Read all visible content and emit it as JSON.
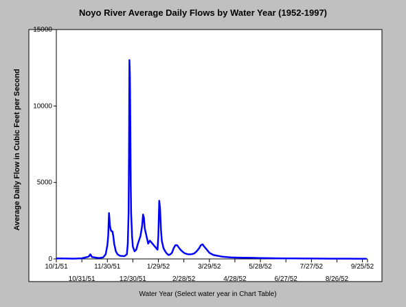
{
  "chart_data": {
    "type": "line",
    "title": "Noyo River Average Daily Flows by Water Year (1952-1997)",
    "xlabel": "Water Year (Select water year in Chart Table)",
    "ylabel": "Average Daily Flow in Cubic Feet per Second",
    "ylim": [
      0,
      15000
    ],
    "yticks": [
      0,
      5000,
      10000,
      15000
    ],
    "x_tick_labels": [
      "10/1/51",
      "10/31/51",
      "11/30/51",
      "12/30/51",
      "1/29/52",
      "2/28/52",
      "3/29/52",
      "4/28/52",
      "5/28/52",
      "6/27/52",
      "7/27/52",
      "8/26/52",
      "9/25/52"
    ],
    "x_tick_days": [
      0,
      30,
      60,
      90,
      120,
      150,
      180,
      210,
      240,
      270,
      300,
      330,
      360
    ],
    "xlim": [
      0,
      366
    ],
    "grid": false,
    "legend": "none",
    "series": [
      {
        "color": "#0000ff",
        "x": [
          0,
          10,
          20,
          30,
          38,
          40,
          42,
          50,
          55,
          58,
          60,
          61,
          62,
          63,
          64,
          65,
          66,
          67,
          68,
          70,
          72,
          75,
          80,
          83,
          84,
          85,
          85.5,
          86,
          86.5,
          87,
          87.5,
          88,
          89,
          90,
          92,
          94,
          96,
          99,
          101,
          102,
          103,
          104,
          106,
          108,
          110,
          113,
          116,
          119,
          120,
          121,
          122,
          123,
          124,
          126,
          128,
          130,
          132,
          134,
          136,
          138,
          140,
          142,
          144,
          146,
          148,
          150,
          152,
          155,
          158,
          162,
          165,
          168,
          170,
          172,
          174,
          177,
          180,
          185,
          190,
          195,
          200,
          205,
          210,
          220,
          230,
          240,
          250,
          260,
          270,
          280,
          290,
          300,
          310,
          320,
          330,
          340,
          350,
          360,
          365
        ],
        "values": [
          30,
          25,
          20,
          40,
          150,
          300,
          120,
          60,
          100,
          300,
          900,
          1500,
          3000,
          2200,
          1900,
          1800,
          1800,
          1500,
          1000,
          500,
          300,
          200,
          180,
          300,
          1000,
          3000,
          7000,
          13000,
          12000,
          9000,
          5000,
          3000,
          1500,
          800,
          500,
          600,
          1000,
          1500,
          2200,
          2900,
          2700,
          2000,
          1500,
          1000,
          1200,
          1000,
          800,
          600,
          1500,
          3800,
          3300,
          2000,
          1200,
          700,
          500,
          350,
          250,
          300,
          400,
          700,
          900,
          900,
          750,
          600,
          500,
          400,
          350,
          300,
          300,
          350,
          500,
          700,
          900,
          950,
          800,
          600,
          400,
          250,
          200,
          150,
          120,
          100,
          90,
          80,
          70,
          60,
          50,
          40,
          35,
          30,
          28,
          25,
          22,
          20,
          18,
          16,
          15,
          14,
          13
        ]
      }
    ]
  }
}
